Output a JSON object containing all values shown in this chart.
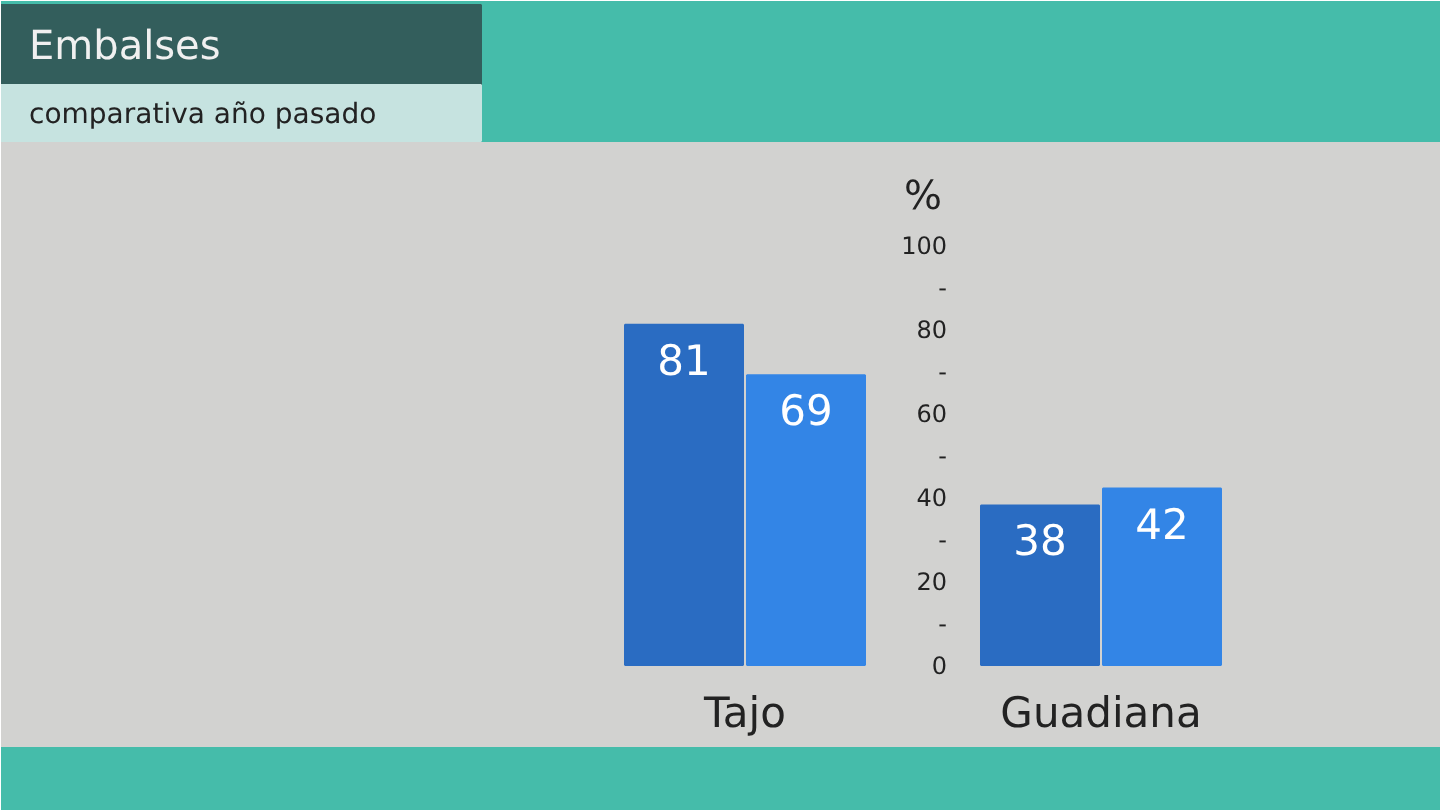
{
  "chart_data": {
    "type": "bar",
    "title": "Embalses",
    "subtitle": "comparativa año pasado",
    "ylabel": "%",
    "categories": [
      "Tajo",
      "Guadiana"
    ],
    "series": [
      {
        "color": "#2a6cc2",
        "values": [
          81,
          38
        ]
      },
      {
        "color": "#3385e6",
        "values": [
          69,
          42
        ]
      }
    ],
    "ylim": [
      0,
      100
    ],
    "yticks": [
      0,
      {
        "value": 10,
        "label": "-"
      },
      20,
      {
        "value": 30,
        "label": "-"
      },
      40,
      {
        "value": 50,
        "label": "-"
      },
      60,
      {
        "value": 70,
        "label": "-"
      },
      80,
      {
        "value": 90,
        "label": "-"
      },
      100
    ],
    "data_labels": true,
    "grid": false
  }
}
